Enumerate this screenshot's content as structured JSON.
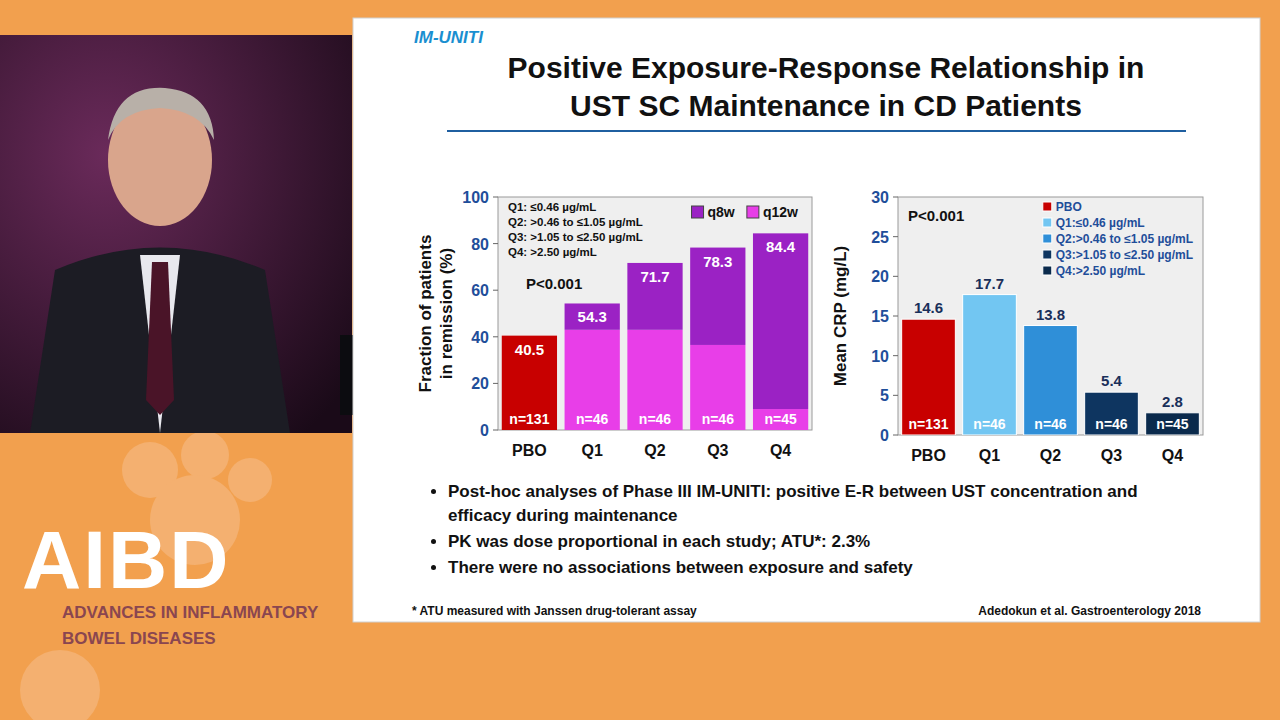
{
  "branding": {
    "logo": "AIBD",
    "tagline": [
      "ADVANCES IN INFLAMMATORY",
      "BOWEL DISEASES"
    ]
  },
  "slide": {
    "tag": "IM-UNITI",
    "title": [
      "Positive Exposure-Response Relationship in",
      "UST SC Maintenance in CD Patients"
    ],
    "bullets": [
      "Post-hoc analyses of Phase III IM-UNITI: positive E-R between UST concentration and efficacy during maintenance",
      "PK was dose proportional in each study; ATU*: 2.3%",
      "There were no associations between exposure and safety"
    ],
    "footnote": "* ATU measured with Janssen drug-tolerant assay",
    "citation": "Adedokun et al. Gastroenterology 2018"
  },
  "chart_data": [
    {
      "type": "bar",
      "stacked": true,
      "categories": [
        "PBO",
        "Q1",
        "Q2",
        "Q3",
        "Q4"
      ],
      "series": [
        {
          "color": "#c80000",
          "values": [
            40.5,
            null,
            null,
            null,
            null
          ]
        },
        {
          "name": "q12w",
          "color": "#e83ee8",
          "values": [
            null,
            43,
            43,
            36.5,
            9
          ]
        },
        {
          "name": "q8w",
          "color": "#9b22c4",
          "values": [
            null,
            11.3,
            28.7,
            41.8,
            75.4
          ]
        }
      ],
      "totals": [
        40.5,
        54.3,
        71.7,
        78.3,
        84.4
      ],
      "sample_sizes": [
        "n=131",
        "n=46",
        "n=46",
        "n=46",
        "n=45"
      ],
      "y_label": "Fraction of patients in remission (%)",
      "ylim": [
        0,
        100
      ],
      "yticks": [
        0,
        20,
        40,
        60,
        80,
        100
      ],
      "annotations": [
        "Q1: ≤0.46 µg/mL",
        "Q2: >0.46 to ≤1.05 µg/mL",
        "Q3: >1.05 to ≤2.50 µg/mL",
        "Q4: >2.50 µg/mL"
      ],
      "p_value": "P<0.001",
      "legend": "top-right"
    },
    {
      "type": "bar",
      "categories": [
        "PBO",
        "Q1",
        "Q2",
        "Q3",
        "Q4"
      ],
      "values": [
        14.6,
        17.7,
        13.8,
        5.4,
        2.8
      ],
      "colors": [
        "#c80000",
        "#72c6f2",
        "#2f8fd8",
        "#0e3560",
        "#0a2a4c"
      ],
      "data_labels": true,
      "legend_labels": [
        "PBO",
        "Q1:≤0.46 µg/mL",
        "Q2:>0.46 to ≤1.05 µg/mL",
        "Q3:>1.05 to ≤2.50 µg/mL",
        "Q4:>2.50 µg/mL"
      ],
      "sample_sizes": [
        "n=131",
        "n=46",
        "n=46",
        "n=46",
        "n=45"
      ],
      "y_label": "Mean CRP (mg/L)",
      "ylim": [
        0,
        30
      ],
      "yticks": [
        0,
        5,
        10,
        15,
        20,
        25,
        30
      ],
      "p_value": "P<0.001",
      "legend": "top-right"
    }
  ]
}
